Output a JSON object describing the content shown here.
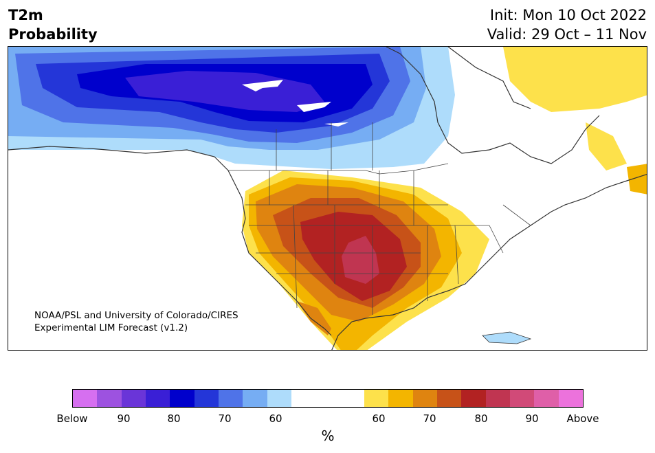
{
  "header": {
    "title_line1": "T2m",
    "title_line2": "Probability",
    "init_label": "Init: Mon 10 Oct 2022",
    "valid_label": "Valid: 29 Oct – 11 Nov"
  },
  "map": {
    "credit_line1": "NOAA/PSL and University of Colorado/CIRES",
    "credit_line2": "Experimental LIM Forecast (v1.2)",
    "below_colors": [
      "#d66ff0",
      "#9d52e0",
      "#6a35d8",
      "#3a1fd6",
      "#0000cc",
      "#2436d8",
      "#4f73e8",
      "#76adf3",
      "#aedcfb"
    ],
    "above_colors": [
      "#fde14b",
      "#f3b500",
      "#df8410",
      "#c75218",
      "#b22222",
      "#c03551",
      "#d14a78",
      "#df5fa8",
      "#ec72dc"
    ]
  },
  "colorbar": {
    "tick_labels": [
      "Below",
      "90",
      "80",
      "70",
      "60",
      "60",
      "70",
      "80",
      "90",
      "Above"
    ],
    "unit_label": "%"
  }
}
